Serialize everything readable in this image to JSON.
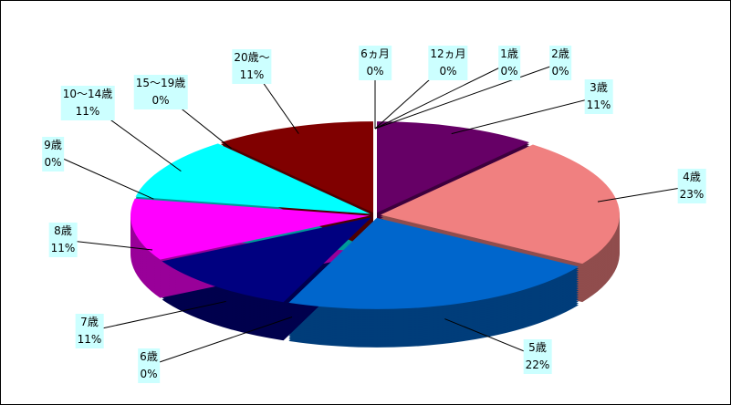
{
  "chart_data": {
    "type": "pie",
    "categories": [
      "6ヵ月",
      "12ヵ月",
      "1歳",
      "2歳",
      "3歳",
      "4歳",
      "5歳",
      "6歳",
      "7歳",
      "8歳",
      "9歳",
      "10～14歳",
      "15～19歳",
      "20歳～"
    ],
    "values": [
      0,
      0,
      0,
      0,
      11,
      23,
      22,
      0,
      11,
      11,
      0,
      11,
      0,
      11
    ],
    "value_labels": [
      "0%",
      "0%",
      "0%",
      "0%",
      "11%",
      "23%",
      "22%",
      "0%",
      "11%",
      "11%",
      "0%",
      "11%",
      "0%",
      "11%"
    ],
    "colors": [
      "#993366",
      "#993366",
      "#993366",
      "#993366",
      "#660066",
      "#f08080",
      "#0066cc",
      "#ccccff",
      "#000080",
      "#ff00ff",
      "#800080",
      "#00ffff",
      "#0000ff",
      "#800000"
    ]
  }
}
